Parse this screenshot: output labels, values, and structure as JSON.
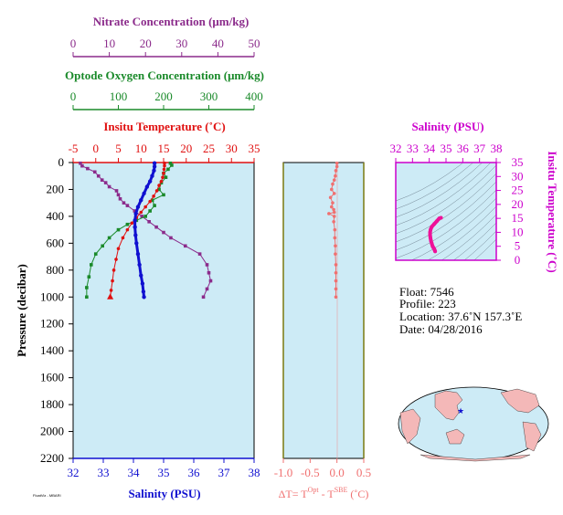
{
  "colors": {
    "nitrate": "#8b2b8b",
    "oxygen": "#1a8a2a",
    "temperature": "#e01010",
    "salinity": "#1010d0",
    "delta_t": "#f07070",
    "panel_bg": "#cdebf6",
    "ts_pink": "#ee1199",
    "magenta_axis": "#cc00cc"
  },
  "axes": {
    "nitrate": {
      "label": "Nitrate Concentration (μm/kg)",
      "ticks": [
        "0",
        "10",
        "20",
        "30",
        "40",
        "50"
      ]
    },
    "oxygen": {
      "label": "Optode Oxygen Concentration (μm/kg)",
      "ticks": [
        "0",
        "100",
        "200",
        "300",
        "400"
      ]
    },
    "temperature": {
      "label": "Insitu Temperature (˚C)",
      "ticks": [
        "-5",
        "0",
        "5",
        "10",
        "15",
        "20",
        "25",
        "30",
        "35"
      ]
    },
    "pressure": {
      "label": "Pressure (decibar)",
      "ticks": [
        "0",
        "200",
        "400",
        "600",
        "800",
        "1000",
        "1200",
        "1400",
        "1600",
        "1800",
        "2000",
        "2200"
      ]
    },
    "salinity": {
      "label": "Salinity (PSU)",
      "ticks": [
        "32",
        "33",
        "34",
        "35",
        "36",
        "37",
        "38"
      ]
    },
    "delta_t": {
      "label_main": "ΔT= T",
      "sup1": "Opt",
      "label_mid": " - T",
      "sup2": "SBE",
      "label_end": " (˚C)",
      "ticks": [
        "-1.0",
        "-0.5",
        "0.0",
        "0.5"
      ]
    },
    "ts_salinity": {
      "label": "Salinity (PSU)",
      "ticks": [
        "32",
        "33",
        "34",
        "35",
        "36",
        "37",
        "38"
      ]
    },
    "ts_temperature": {
      "label": "Insitu Temperature (˚C)",
      "ticks": [
        "0",
        "5",
        "10",
        "15",
        "20",
        "25",
        "30",
        "35"
      ]
    }
  },
  "info": {
    "float": "Float:  7546",
    "profile": "Profile:  223",
    "location": "Location:  37.6˚N  157.3˚E",
    "date": "Date:  04/28/2016"
  },
  "small_print": "FloatViz - MBARI",
  "chart_data": [
    {
      "type": "line",
      "title": "",
      "ylabel": "Pressure (decibar)",
      "ylim": [
        0,
        2200
      ],
      "y_inverted": true,
      "grid": false,
      "series": [
        {
          "name": "Nitrate Concentration (μm/kg)",
          "xlim": [
            0,
            50
          ],
          "x": [
            2,
            2.5,
            4,
            6,
            7,
            8,
            9,
            10,
            12,
            12.5,
            13,
            14,
            15,
            17,
            19,
            21,
            23,
            25,
            27,
            31,
            35,
            37,
            37.5,
            38,
            37,
            36
          ],
          "y": [
            5,
            25,
            45,
            70,
            100,
            130,
            150,
            180,
            210,
            240,
            270,
            300,
            320,
            360,
            400,
            440,
            480,
            520,
            560,
            620,
            680,
            760,
            820,
            880,
            940,
            1000
          ]
        },
        {
          "name": "Optode Oxygen Concentration (μm/kg)",
          "xlim": [
            0,
            400
          ],
          "x": [
            215,
            218,
            210,
            200,
            205,
            195,
            190,
            200,
            175,
            180,
            170,
            160,
            140,
            120,
            100,
            80,
            65,
            50,
            40,
            35,
            30,
            30
          ],
          "y": [
            5,
            20,
            50,
            80,
            110,
            150,
            200,
            240,
            280,
            320,
            360,
            400,
            430,
            460,
            500,
            560,
            620,
            680,
            760,
            850,
            930,
            1000
          ]
        },
        {
          "name": "Insitu Temperature (˚C)",
          "xlim": [
            -5,
            35
          ],
          "x": [
            15.2,
            15.2,
            15.1,
            15.0,
            14.8,
            14.5,
            14.0,
            13.5,
            12.8,
            12.0,
            11.0,
            10.0,
            9.0,
            8.0,
            7.0,
            6.0,
            5.0,
            4.5,
            4.0,
            3.7,
            3.4,
            3.2
          ],
          "y": [
            5,
            25,
            50,
            80,
            110,
            140,
            170,
            210,
            250,
            290,
            330,
            370,
            410,
            450,
            500,
            560,
            640,
            720,
            800,
            880,
            950,
            1000
          ]
        },
        {
          "name": "Salinity (PSU)",
          "xlim": [
            32,
            38
          ],
          "x": [
            34.7,
            34.7,
            34.68,
            34.62,
            34.55,
            34.45,
            34.35,
            34.25,
            34.15,
            34.08,
            34.05,
            34.05,
            34.07,
            34.1,
            34.15,
            34.2,
            34.25,
            34.3,
            34.33,
            34.35
          ],
          "y": [
            5,
            30,
            60,
            100,
            140,
            180,
            230,
            280,
            330,
            380,
            430,
            480,
            540,
            600,
            680,
            760,
            840,
            900,
            960,
            1000
          ]
        }
      ]
    },
    {
      "type": "scatter",
      "title": "",
      "xlabel": "ΔT= TOpt - TSBE (˚C)",
      "xlim": [
        -1.0,
        0.5
      ],
      "ylim": [
        0,
        2200
      ],
      "x": [
        0.0,
        0.0,
        -0.02,
        -0.03,
        -0.05,
        -0.08,
        -0.1,
        -0.05,
        -0.12,
        -0.08,
        -0.1,
        -0.06,
        -0.05,
        -0.15,
        -0.05,
        -0.06,
        -0.04,
        -0.04,
        -0.03,
        -0.03,
        -0.02,
        -0.02,
        -0.02,
        -0.02,
        -0.02
      ],
      "y": [
        5,
        30,
        60,
        100,
        130,
        160,
        200,
        230,
        260,
        300,
        330,
        350,
        370,
        380,
        400,
        440,
        500,
        560,
        620,
        680,
        760,
        820,
        880,
        940,
        1000
      ]
    },
    {
      "type": "line",
      "title": "",
      "xlabel": "Salinity (PSU)",
      "ylabel": "Insitu Temperature (˚C)",
      "xlim": [
        32,
        38
      ],
      "ylim": [
        0,
        35
      ],
      "x": [
        34.35,
        34.33,
        34.3,
        34.25,
        34.2,
        34.15,
        34.1,
        34.07,
        34.05,
        34.05,
        34.08,
        34.15,
        34.3,
        34.45,
        34.6,
        34.7
      ],
      "y": [
        3.2,
        3.5,
        4.0,
        4.5,
        5.0,
        6.0,
        7.0,
        8.0,
        9.0,
        10.0,
        11.0,
        12.0,
        13.0,
        14.0,
        15.0,
        15.2
      ]
    }
  ]
}
